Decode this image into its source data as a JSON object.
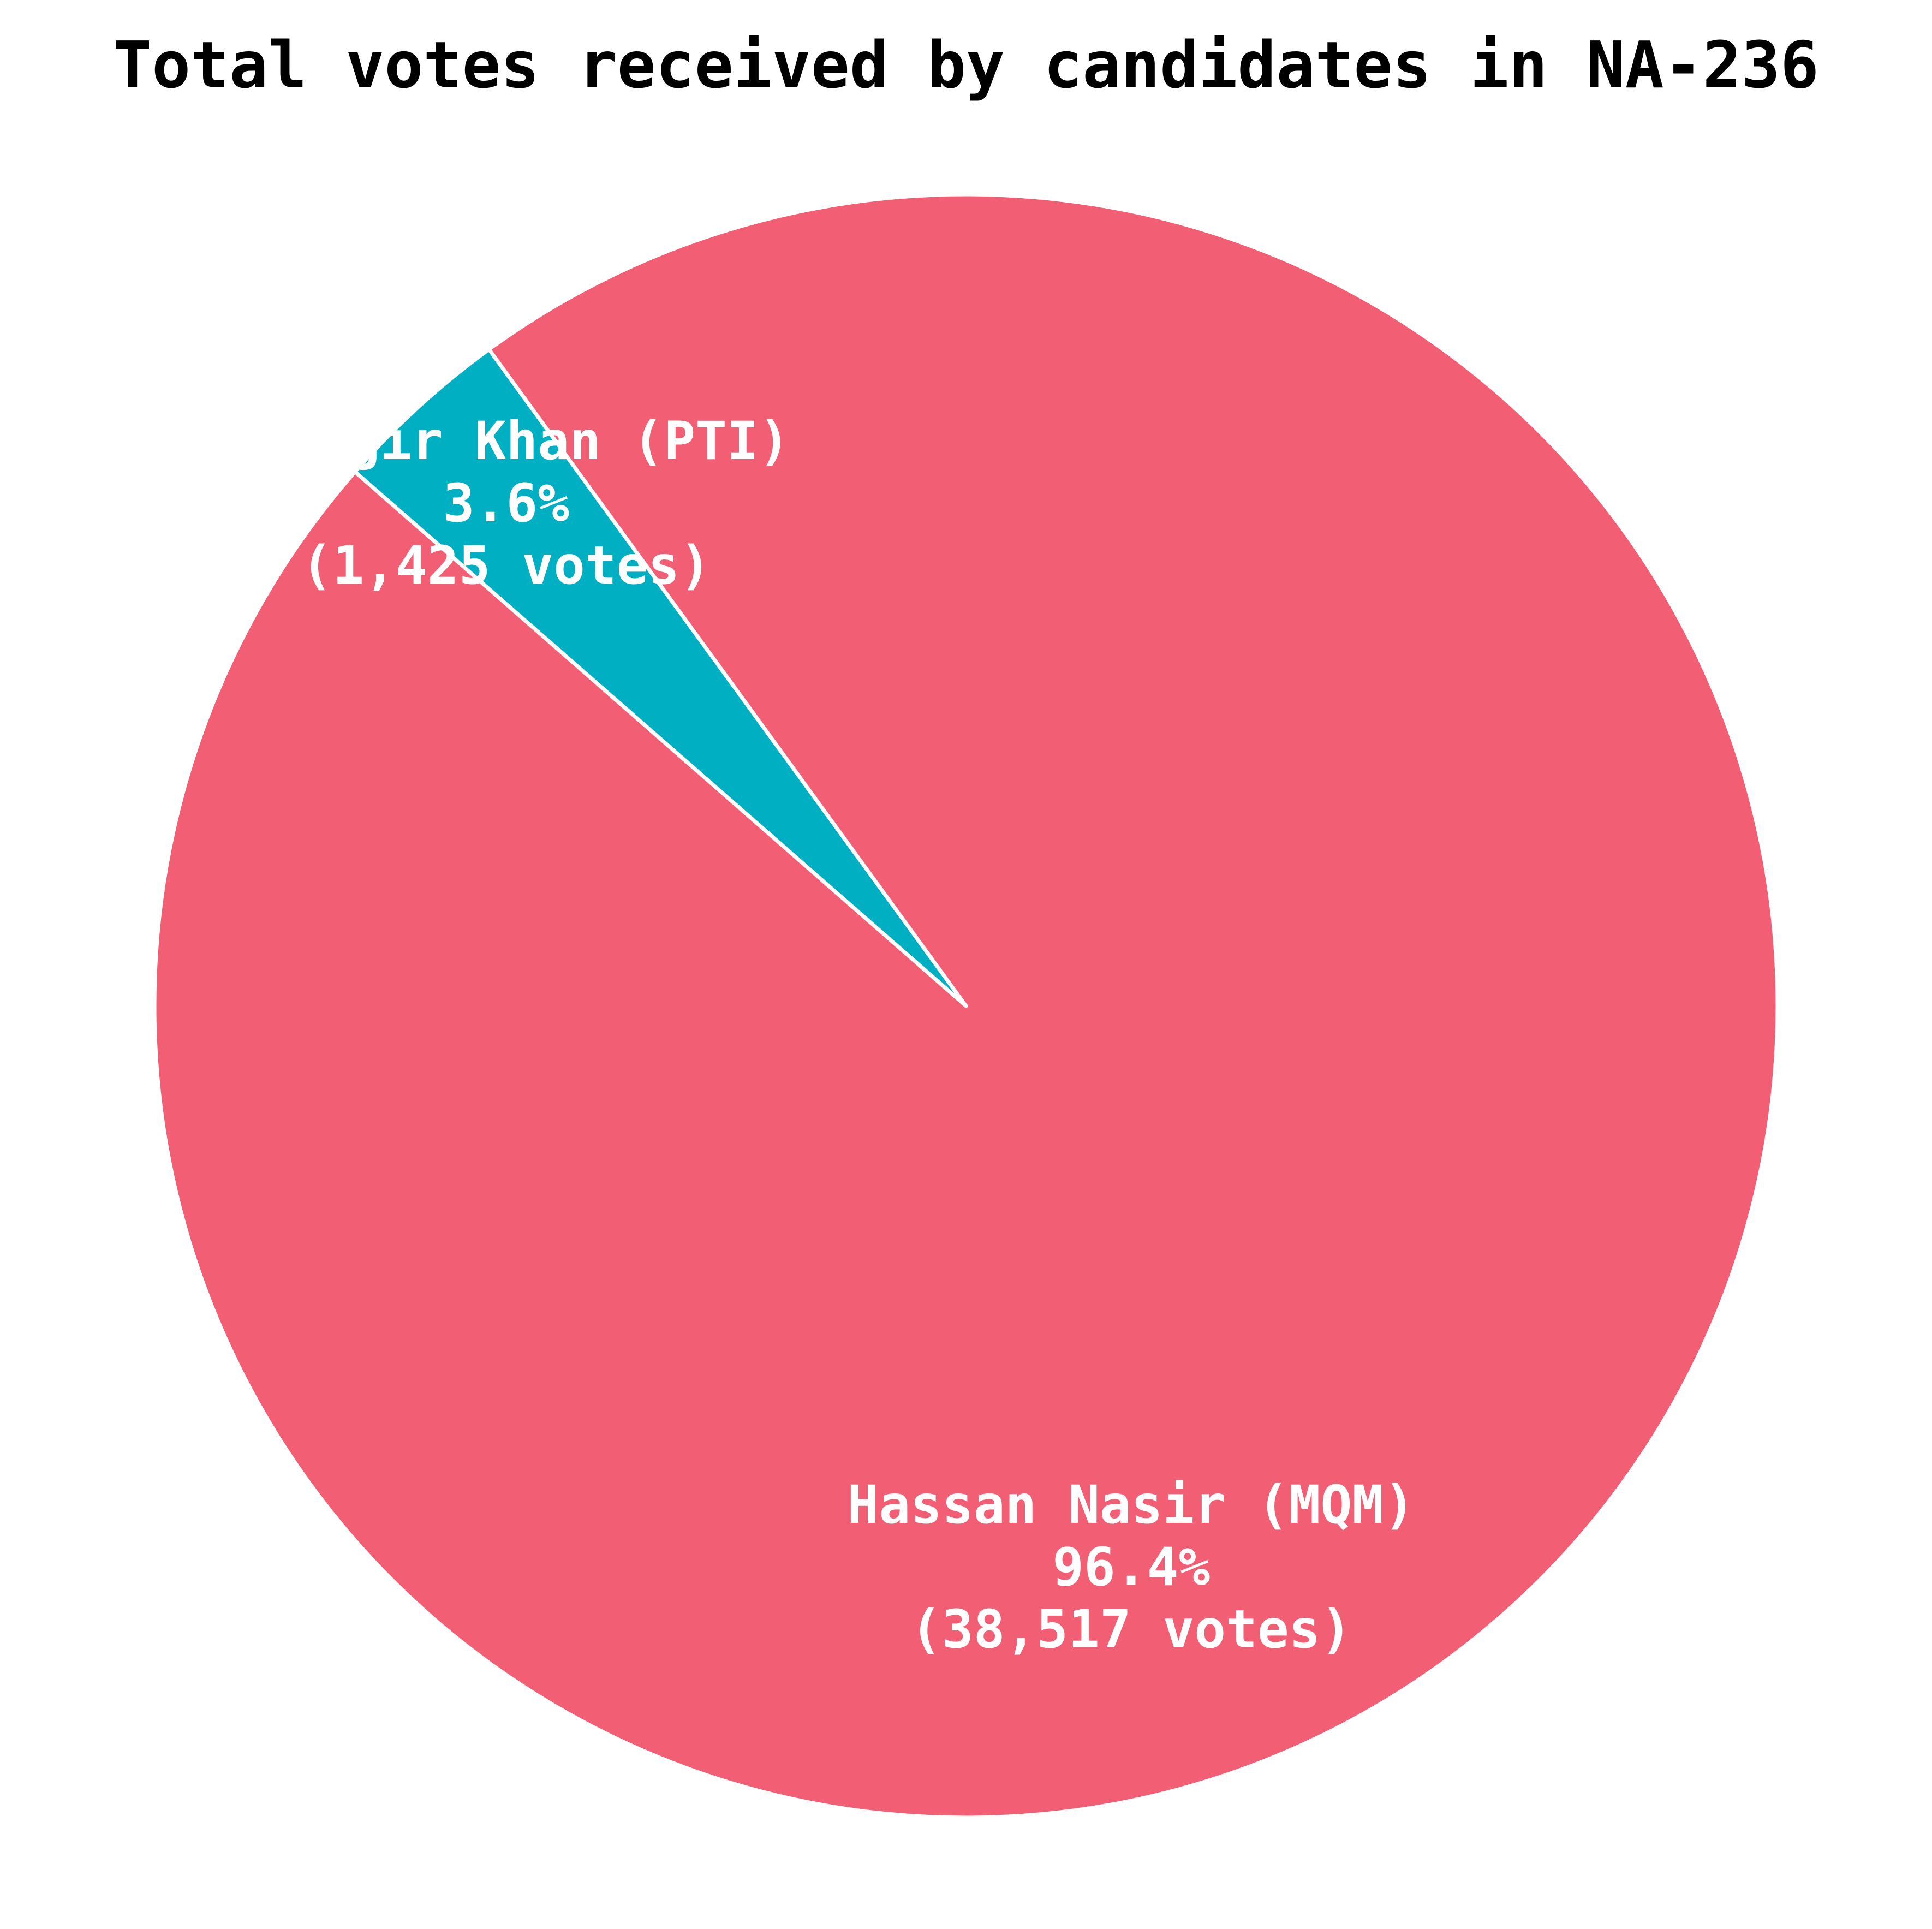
{
  "chart_data": {
    "type": "pie",
    "title": "Total votes received by candidates in NA-236",
    "slices": [
      {
        "name": "Alamgir Khan (PTI)",
        "value": 1425,
        "percent_label": "3.6%",
        "votes_label": "(1,425 votes)",
        "color": "#00AFC1"
      },
      {
        "name": "Hassan Nasir (MQM)",
        "value": 38517,
        "percent_label": "96.4%",
        "votes_label": "(38,517 votes)",
        "color": "#F25F75"
      }
    ],
    "slice_edge_color": "#ffffff"
  }
}
